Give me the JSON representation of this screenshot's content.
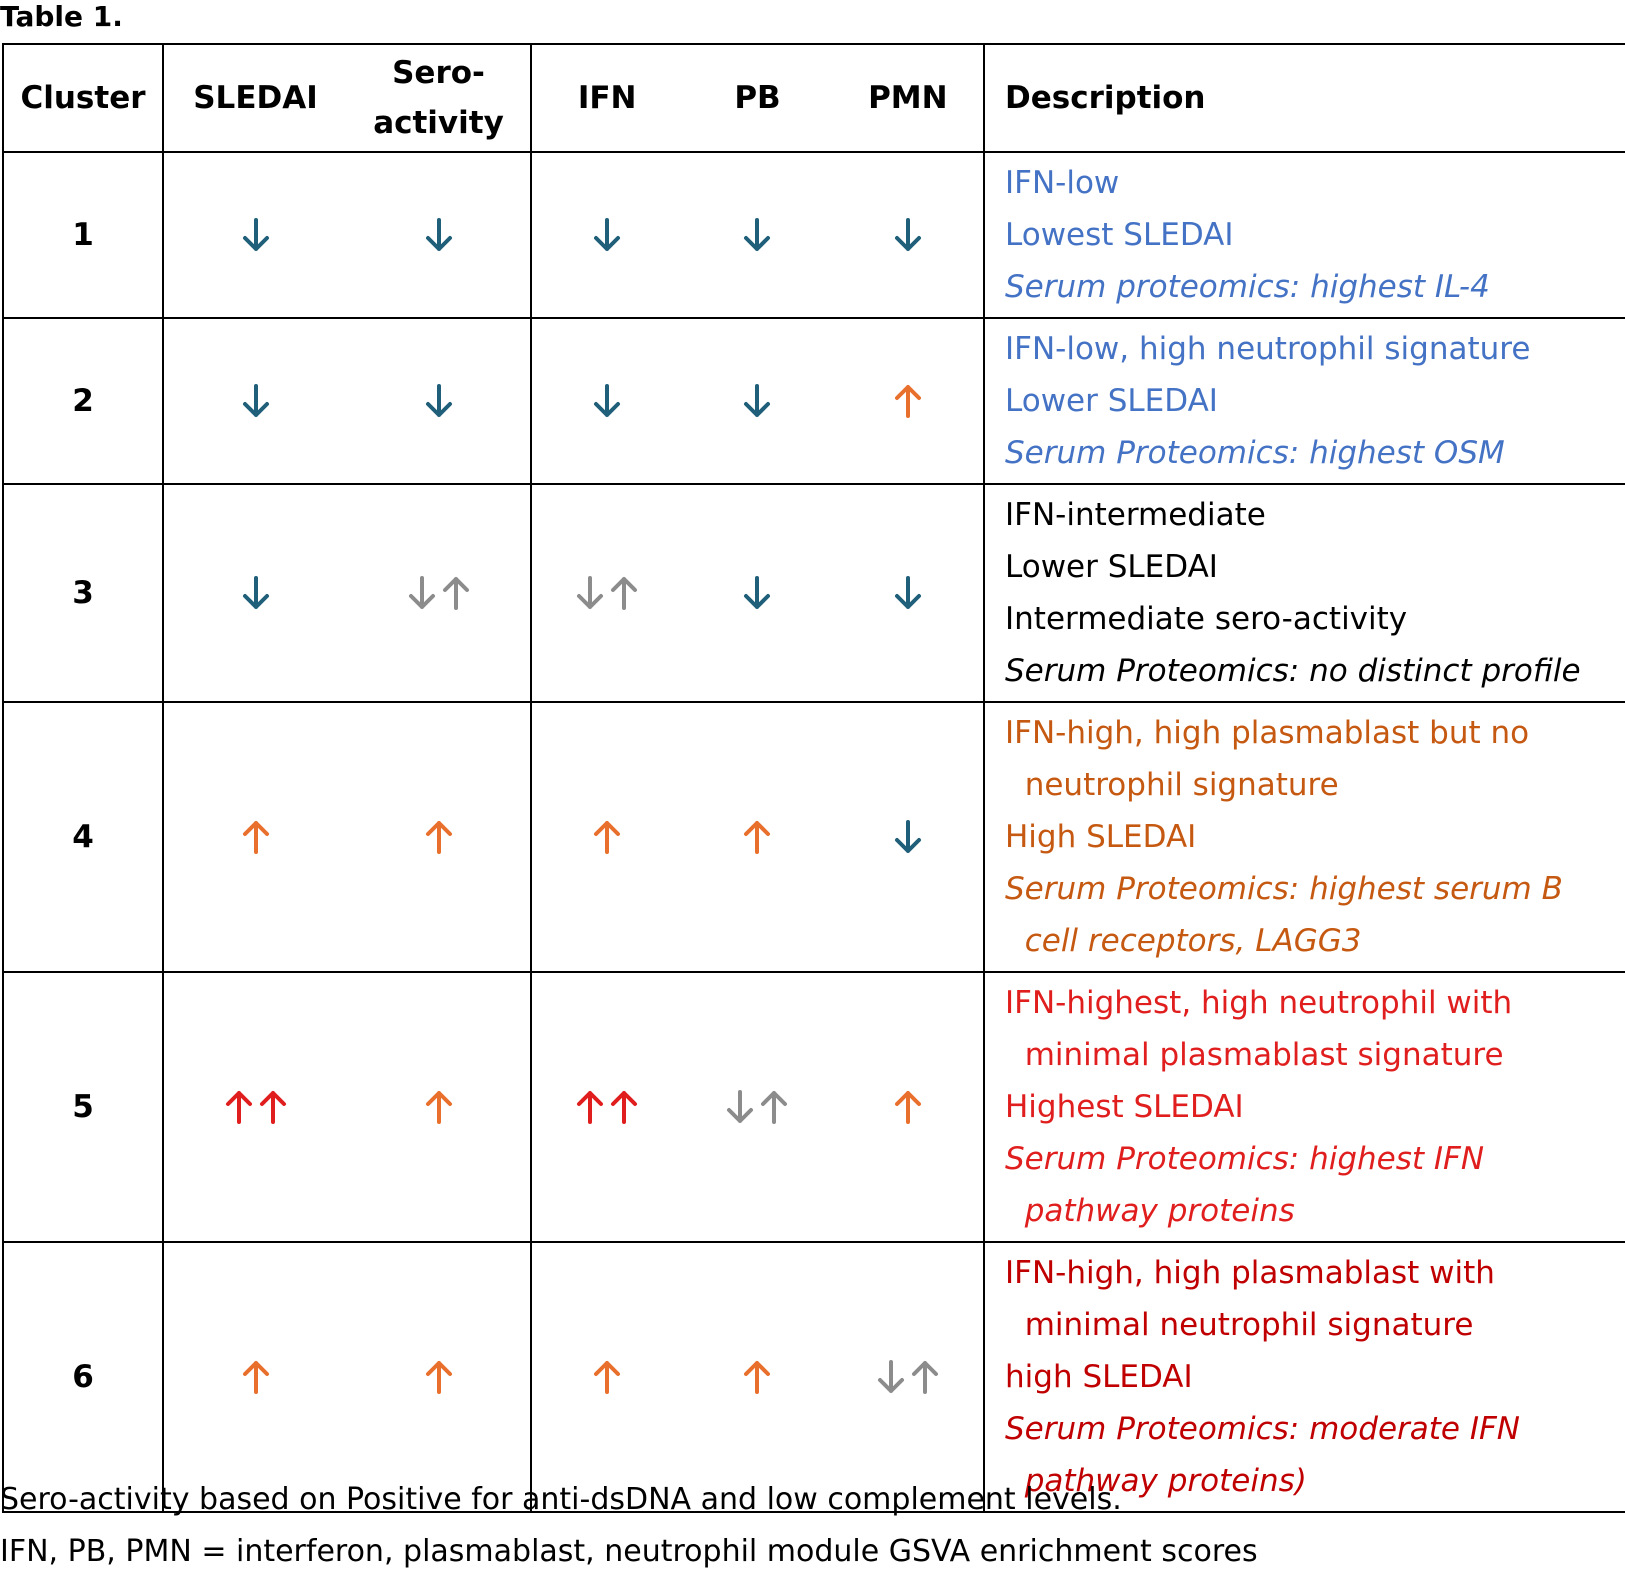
{
  "caption": "Table 1.",
  "headers": {
    "cluster": "Cluster",
    "sledai": "SLEDAI",
    "sero_line1": "Sero-",
    "sero_line2": "activity",
    "ifn": "IFN",
    "pb": "PB",
    "pmn": "PMN",
    "description": "Description"
  },
  "arrow_colors": {
    "down": "#1f5f7a",
    "up": "#e86f2c",
    "strong_up": "#e01e1e",
    "mixed": "#8c8c8c"
  },
  "rows": [
    {
      "cluster": "1",
      "sledai": "down",
      "sero": "down",
      "ifn": "down",
      "pb": "down",
      "pmn": "down",
      "desc_color": "#4472c4",
      "desc": [
        {
          "text": "IFN-low",
          "italic": false
        },
        {
          "text": "Lowest SLEDAI",
          "italic": false
        },
        {
          "text": "Serum proteomics: highest IL-4",
          "italic": true
        }
      ]
    },
    {
      "cluster": "2",
      "sledai": "down",
      "sero": "down",
      "ifn": "down",
      "pb": "down",
      "pmn": "up",
      "desc_color": "#4472c4",
      "desc": [
        {
          "text": "IFN-low, high neutrophil signature",
          "italic": false
        },
        {
          "text": "Lower SLEDAI",
          "italic": false
        },
        {
          "text": "Serum Proteomics: highest OSM",
          "italic": true
        }
      ]
    },
    {
      "cluster": "3",
      "sledai": "down",
      "sero": "mixed",
      "ifn": "mixed",
      "pb": "down",
      "pmn": "down",
      "desc_color": "#000000",
      "desc": [
        {
          "text": "IFN-intermediate",
          "italic": false
        },
        {
          "text": "Lower SLEDAI",
          "italic": false
        },
        {
          "text": "Intermediate sero-activity",
          "italic": false
        },
        {
          "text": "Serum Proteomics: no distinct profile",
          "italic": true
        }
      ]
    },
    {
      "cluster": "4",
      "sledai": "up",
      "sero": "up",
      "ifn": "up",
      "pb": "up",
      "pmn": "down",
      "desc_color": "#c65911",
      "desc": [
        {
          "text": "IFN-high, high plasmablast but no",
          "italic": false
        },
        {
          "text": "  neutrophil signature",
          "italic": false
        },
        {
          "text": "High SLEDAI",
          "italic": false
        },
        {
          "text": "Serum Proteomics: highest serum B",
          "italic": true
        },
        {
          "text": "  cell receptors, LAGG3",
          "italic": true
        }
      ]
    },
    {
      "cluster": "5",
      "sledai": "strong_up",
      "sero": "up",
      "ifn": "strong_up",
      "pb": "mixed",
      "pmn": "up",
      "desc_color": "#e01e1e",
      "desc": [
        {
          "text": "IFN-highest, high neutrophil with",
          "italic": false
        },
        {
          "text": "  minimal plasmablast signature",
          "italic": false
        },
        {
          "text": "Highest SLEDAI",
          "italic": false
        },
        {
          "text": "Serum Proteomics: highest IFN",
          "italic": true
        },
        {
          "text": "  pathway proteins",
          "italic": true
        }
      ]
    },
    {
      "cluster": "6",
      "sledai": "up",
      "sero": "up",
      "ifn": "up",
      "pb": "up",
      "pmn": "mixed",
      "desc_color": "#c00000",
      "desc": [
        {
          "text": "IFN-high, high plasmablast with",
          "italic": false
        },
        {
          "text": "  minimal neutrophil signature",
          "italic": false
        },
        {
          "text": "high SLEDAI",
          "italic": false
        },
        {
          "text": "Serum Proteomics: moderate IFN",
          "italic": true
        },
        {
          "text": "  pathway proteins)",
          "italic": true
        }
      ]
    }
  ],
  "footnotes": [
    "Sero-activity based on Positive for anti-dsDNA and low complement levels.",
    "IFN, PB, PMN = interferon, plasmablast, neutrophil module GSVA enrichment scores"
  ]
}
